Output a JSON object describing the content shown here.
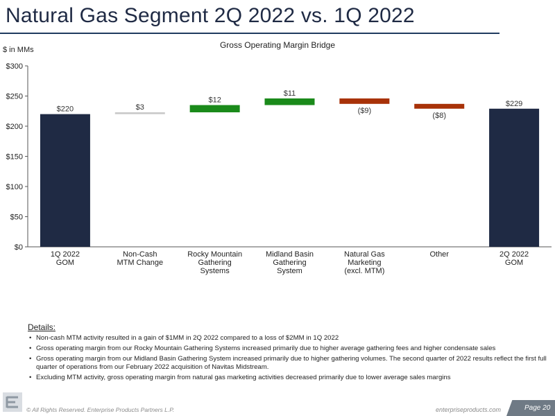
{
  "page": {
    "title": "Natural Gas Segment 2Q 2022 vs. 1Q 2022",
    "units_label": "$ in MMs"
  },
  "chart_data": {
    "type": "waterfall",
    "title": "Gross Operating Margin Bridge",
    "ylabel": "$ in MMs",
    "ylim": [
      0,
      300
    ],
    "yticks": [
      "$0",
      "$50",
      "$100",
      "$150",
      "$200",
      "$250",
      "$300"
    ],
    "ytick_values": [
      0,
      50,
      100,
      150,
      200,
      250,
      300
    ],
    "grid": false,
    "categories": [
      "1Q 2022\nGOM",
      "Non-Cash\nMTM Change",
      "Rocky Mountain\nGathering\nSystems",
      "Midland Basin\nGathering\nSystem",
      "Natural Gas\nMarketing\n(excl. MTM)",
      "Other",
      "2Q 2022\nGOM"
    ],
    "bars": [
      {
        "kind": "total",
        "value": 220,
        "label": "$220",
        "color": "#1f2a44"
      },
      {
        "kind": "delta",
        "value": 3,
        "label": "$3",
        "color": "#c8c8c8"
      },
      {
        "kind": "delta",
        "value": 12,
        "label": "$12",
        "color": "#1a8a1a"
      },
      {
        "kind": "delta",
        "value": 11,
        "label": "$11",
        "color": "#1a8a1a"
      },
      {
        "kind": "delta",
        "value": -9,
        "label": "($9)",
        "color": "#a83208"
      },
      {
        "kind": "delta",
        "value": -8,
        "label": "($8)",
        "color": "#a83208"
      },
      {
        "kind": "total",
        "value": 229,
        "label": "$229",
        "color": "#1f2a44"
      }
    ]
  },
  "details": {
    "heading": "Details:",
    "items": [
      "Non-cash MTM activity resulted in a gain of $1MM in 2Q 2022 compared to a loss of $2MM in 1Q 2022",
      "Gross operating margin from our Rocky Mountain Gathering Systems increased primarily due to higher average gathering fees and higher condensate sales",
      "Gross operating margin from our Midland Basin Gathering System increased primarily due to higher gathering volumes.  The second quarter of 2022 results reflect the first full quarter of operations from our February 2022 acquisition of Navitas Midstream.",
      "Excluding MTM activity, gross operating margin from natural gas marketing activities decreased primarily due to lower average sales margins"
    ]
  },
  "footer": {
    "copyright": "© All Rights Reserved. Enterprise Products Partners L.P.",
    "url": "enterpriseproducts.com",
    "page": "Page 20"
  },
  "colors": {
    "title": "#1f2a44",
    "rule": "#1f3a5f",
    "total_bar": "#1f2a44",
    "increase": "#1a8a1a",
    "decrease": "#a83208",
    "mtm": "#c8c8c8"
  },
  "icons": {
    "logo": "enterprise-logo-icon"
  }
}
